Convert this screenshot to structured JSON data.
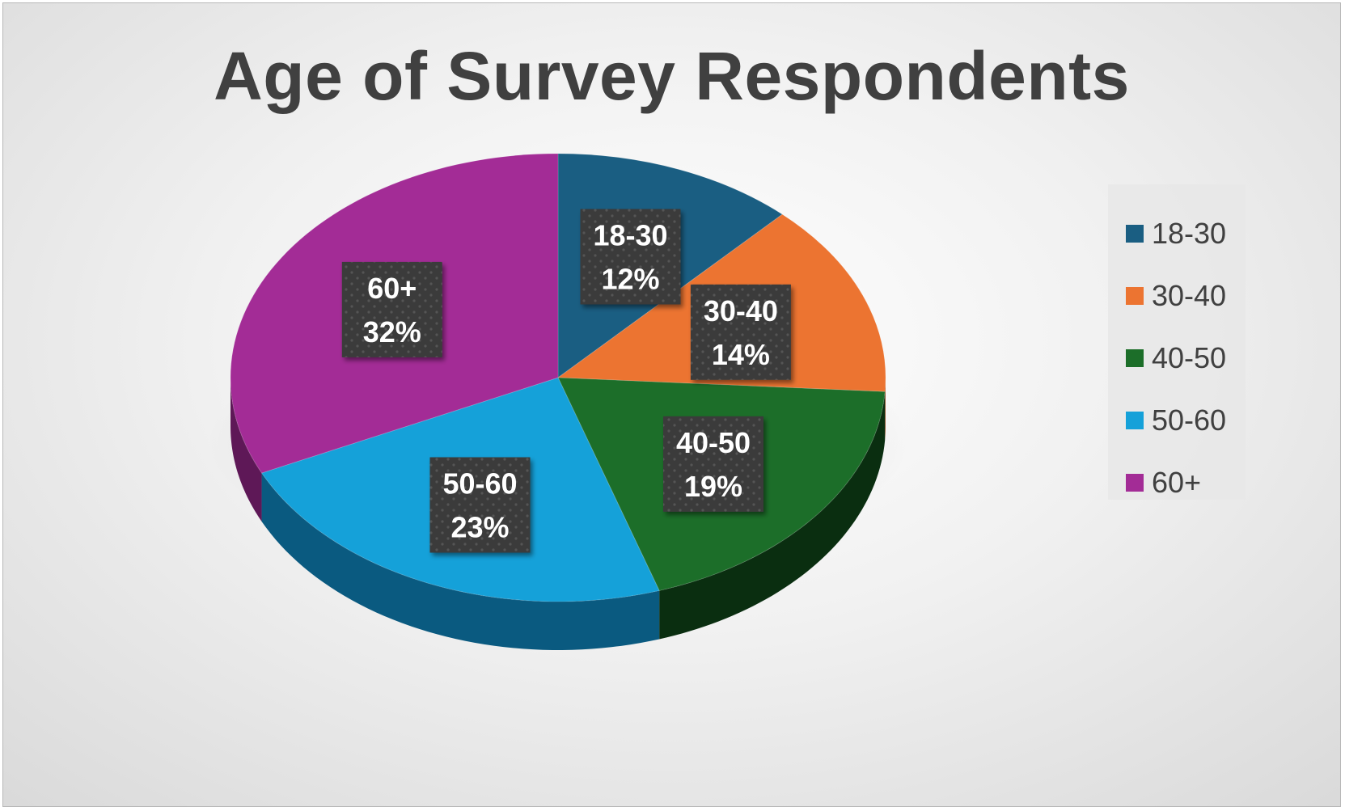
{
  "chart_data": {
    "type": "pie",
    "title": "Age of Survey Respondents",
    "categories": [
      "18-30",
      "30-40",
      "40-50",
      "50-60",
      "60+"
    ],
    "values": [
      12,
      14,
      19,
      23,
      32
    ],
    "value_labels": [
      "12%",
      "14%",
      "19%",
      "23%",
      "32%"
    ],
    "unit": "%",
    "colors": [
      "#1a5e82",
      "#ec7431",
      "#1c6e29",
      "#15a1d9",
      "#a32c96"
    ],
    "side_colors": [
      "#0d3a52",
      "#a04e1f",
      "#0a2e10",
      "#0a5a80",
      "#5e1857"
    ],
    "legend_position": "right",
    "data_label_style": "dark-box"
  },
  "legend": {
    "items": [
      {
        "label": "18-30",
        "color": "#1a5e82"
      },
      {
        "label": "30-40",
        "color": "#ec7431"
      },
      {
        "label": "40-50",
        "color": "#1c6e29"
      },
      {
        "label": "50-60",
        "color": "#15a1d9"
      },
      {
        "label": "60+",
        "color": "#a32c96"
      }
    ]
  }
}
